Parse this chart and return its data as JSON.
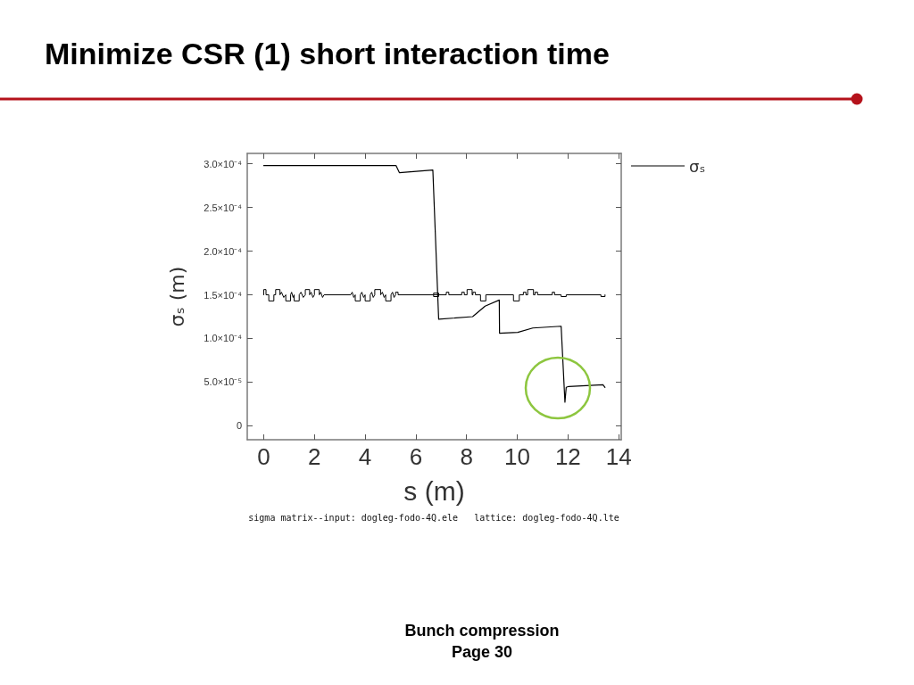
{
  "chart_data": {
    "type": "line",
    "title": "Minimize CSR (1) short interaction time",
    "xlabel": "s (m)",
    "ylabel": "σₛ (m)",
    "annotations": [
      "sigma matrix--input: dogleg-fodo-4Q.ele   lattice: dogleg-fodo-4Q.lte",
      "Bunch compression",
      "Page 30"
    ],
    "xlim": [
      -0.65,
      14.1
    ],
    "xticks": [
      0,
      2,
      4,
      6,
      8,
      10,
      12,
      14
    ],
    "ylim": [
      -1.6e-05,
      0.000312
    ],
    "yticks": [
      0,
      {
        "value": 5e-05,
        "label": "5.0×10⁻⁵"
      },
      {
        "value": 0.0001,
        "label": "1.0×10⁻⁴"
      },
      {
        "value": 0.00015,
        "label": "1.5×10⁻⁴"
      },
      {
        "value": 0.0002,
        "label": "2.0×10⁻⁴"
      },
      {
        "value": 0.00025,
        "label": "2.5×10⁻⁴"
      },
      {
        "value": 0.0003,
        "label": "3.0×10⁻⁴"
      }
    ],
    "grid": false,
    "legend": "top right",
    "marker": "none",
    "line_style": "solid",
    "series": [
      {
        "name": "σₛ",
        "color": "#000000",
        "x": [
          0,
          5.22,
          5.35,
          6.67,
          6.9,
          8.24,
          8.73,
          9.29,
          9.3,
          10.02,
          10.61,
          11.73,
          11.88,
          11.93,
          12.03,
          13.38,
          13.46
        ],
        "values": [
          0.000298,
          0.000298,
          0.00029,
          0.000293,
          0.000122,
          0.000125,
          0.000137,
          0.000144,
          0.000106,
          0.000107,
          0.000112,
          0.000114,
          2.7e-05,
          4.4e-05,
          4.5e-05,
          4.7e-05,
          4.4e-05
        ]
      },
      {
        "color": "#000000",
        "x": [
          0,
          0,
          0.09,
          0.09,
          0.2,
          0.2,
          0.4,
          0.4,
          0.47,
          0.47,
          0.64,
          0.64,
          0.7,
          0.79,
          0.87,
          0.87,
          1.06,
          1.06,
          1.1,
          1.16,
          1.2,
          1.2,
          1.4,
          1.4,
          1.47,
          1.56,
          1.64,
          1.64,
          1.81,
          1.81,
          1.87,
          1.94,
          2.0,
          2.0,
          2.19,
          2.19,
          2.25,
          2.32,
          2.38,
          3.43,
          3.49,
          3.55,
          3.61,
          3.61,
          3.81,
          3.81,
          3.87,
          3.94,
          4.0,
          4.0,
          4.2,
          4.2,
          4.26,
          4.32,
          4.38,
          4.38,
          4.61,
          4.61,
          4.68,
          4.75,
          4.81,
          4.81,
          5.02,
          5.02,
          5.08,
          5.14,
          5.2,
          5.2,
          5.3,
          5.3,
          6.7,
          6.7,
          6.9,
          6.9,
          6.7,
          6.7,
          6.9,
          7.2,
          7.2,
          7.3,
          7.3,
          7.81,
          7.81,
          7.91,
          7.91,
          8.02,
          8.02,
          8.22,
          8.22,
          8.25,
          8.25,
          8.35,
          8.35,
          8.55,
          8.55,
          8.76,
          8.76,
          9.85,
          9.85,
          10.08,
          10.08,
          10.24,
          10.24,
          10.34,
          10.34,
          10.41,
          10.41,
          10.64,
          10.64,
          10.7,
          10.7,
          10.8,
          10.8,
          11.38,
          11.38,
          11.47,
          11.47,
          11.73,
          11.73,
          11.93,
          11.93,
          13.3,
          13.3,
          13.46,
          13.46
        ],
        "values": [
          0.00015,
          0.000156,
          0.000156,
          0.00015,
          0.00015,
          0.000143,
          0.000143,
          0.00015,
          0.00015,
          0.000156,
          0.000156,
          0.00015,
          0.000153,
          0.000147,
          0.00015,
          0.000143,
          0.000143,
          0.00015,
          0.000153,
          0.000147,
          0.00015,
          0.000143,
          0.000143,
          0.00015,
          0.000153,
          0.000147,
          0.00015,
          0.000156,
          0.000156,
          0.00015,
          0.000153,
          0.000147,
          0.00015,
          0.000156,
          0.000156,
          0.00015,
          0.000153,
          0.000147,
          0.00015,
          0.00015,
          0.000153,
          0.000147,
          0.00015,
          0.000143,
          0.000143,
          0.00015,
          0.000153,
          0.000147,
          0.00015,
          0.000143,
          0.000143,
          0.00015,
          0.000153,
          0.000147,
          0.00015,
          0.000156,
          0.000156,
          0.00015,
          0.000153,
          0.000147,
          0.00015,
          0.000143,
          0.000143,
          0.00015,
          0.000153,
          0.000147,
          0.00015,
          0.000153,
          0.000153,
          0.00015,
          0.00015,
          0.000152,
          0.000152,
          0.000148,
          0.000148,
          0.00015,
          0.00015,
          0.00015,
          0.000153,
          0.000153,
          0.00015,
          0.00015,
          0.000153,
          0.000153,
          0.00015,
          0.00015,
          0.000156,
          0.000156,
          0.00015,
          0.00015,
          0.000153,
          0.000153,
          0.00015,
          0.00015,
          0.000143,
          0.000143,
          0.00015,
          0.00015,
          0.000143,
          0.000143,
          0.00015,
          0.00015,
          0.000153,
          0.000153,
          0.00015,
          0.00015,
          0.000156,
          0.000156,
          0.00015,
          0.00015,
          0.000153,
          0.000153,
          0.00015,
          0.00015,
          0.000153,
          0.000153,
          0.00015,
          0.00015,
          0.000148,
          0.000148,
          0.00015,
          0.00015,
          0.000148,
          0.000148,
          0.00015
        ]
      }
    ]
  }
}
